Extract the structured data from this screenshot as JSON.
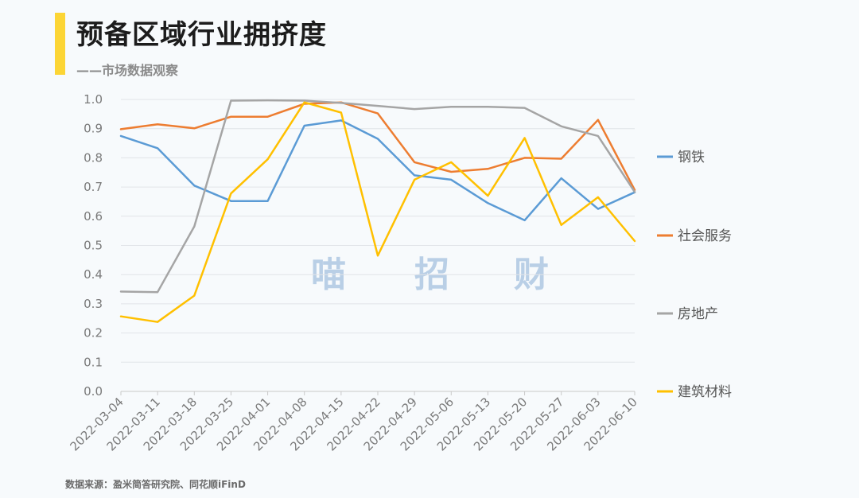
{
  "header": {
    "title": "预备区域行业拥挤度",
    "subtitle": "——市场数据观察"
  },
  "source_note": "数据来源：盈米简答研究院、同花顺iFinD",
  "watermark": [
    "喵",
    "招",
    "财"
  ],
  "colors": {
    "accent": "#fcd535",
    "steel": "#5b9bd5",
    "social_services": "#ed7d31",
    "real_estate": "#a5a5a5",
    "building_materials": "#ffc000"
  },
  "chart_data": {
    "type": "line",
    "title": "预备区域行业拥挤度",
    "xlabel": "",
    "ylabel": "",
    "ylim": [
      0,
      1.0
    ],
    "yticks": [
      "0.0",
      "0.1",
      "0.2",
      "0.3",
      "0.4",
      "0.5",
      "0.6",
      "0.7",
      "0.8",
      "0.9",
      "1.0"
    ],
    "grid": true,
    "legend_position": "right",
    "x": [
      "2022-03-04",
      "2022-03-11",
      "2022-03-18",
      "2022-03-25",
      "2022-04-01",
      "2022-04-08",
      "2022-04-15",
      "2022-04-22",
      "2022-04-29",
      "2022-05-06",
      "2022-05-13",
      "2022-05-20",
      "2022-05-27",
      "2022-06-03",
      "2022-06-10"
    ],
    "series": [
      {
        "name": "钢铁",
        "color": "#5b9bd5",
        "values": [
          0.875,
          0.833,
          0.705,
          0.652,
          0.652,
          0.91,
          0.928,
          0.865,
          0.74,
          0.725,
          0.645,
          0.586,
          0.73,
          0.625,
          0.682
        ]
      },
      {
        "name": "社会服务",
        "color": "#ed7d31",
        "values": [
          0.898,
          0.915,
          0.901,
          0.941,
          0.941,
          0.985,
          0.99,
          0.952,
          0.785,
          0.752,
          0.762,
          0.8,
          0.797,
          0.93,
          0.69
        ]
      },
      {
        "name": "房地产",
        "color": "#a5a5a5",
        "values": [
          0.342,
          0.34,
          0.565,
          0.996,
          0.997,
          0.996,
          0.988,
          0.978,
          0.967,
          0.975,
          0.975,
          0.971,
          0.908,
          0.875,
          0.683
        ]
      },
      {
        "name": "建筑材料",
        "color": "#ffc000",
        "values": [
          0.257,
          0.238,
          0.328,
          0.678,
          0.795,
          0.99,
          0.955,
          0.465,
          0.725,
          0.785,
          0.67,
          0.868,
          0.57,
          0.665,
          0.515
        ]
      }
    ]
  }
}
